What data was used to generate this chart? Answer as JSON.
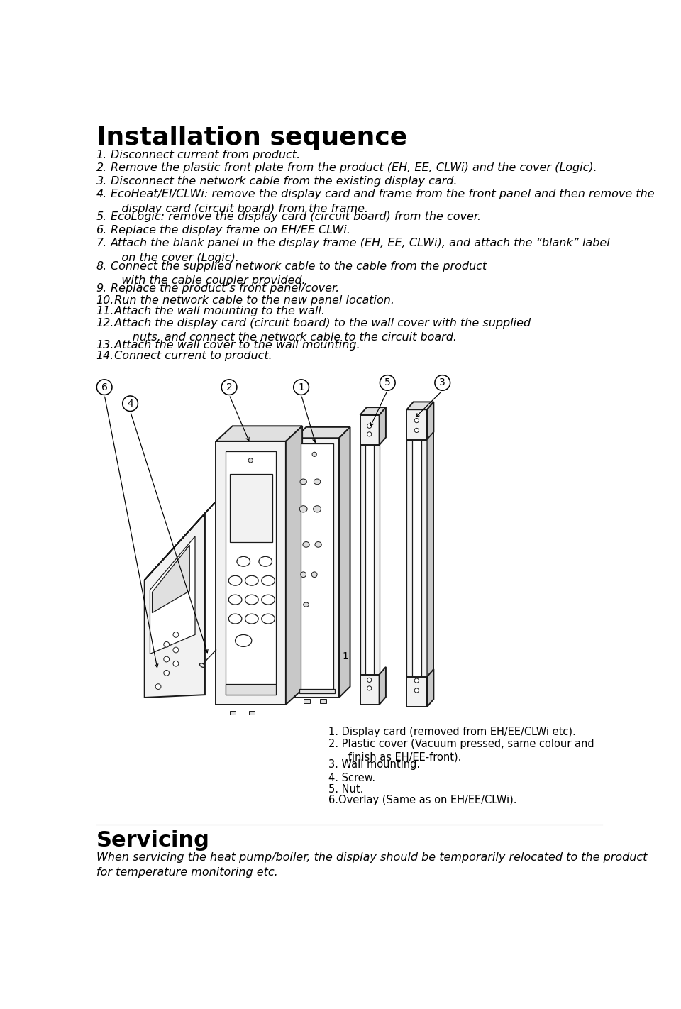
{
  "background_color": "#ffffff",
  "title": "Installation sequence",
  "title_fontsize": 26,
  "steps_italic": true,
  "steps": [
    {
      "num": "1.",
      "text": "Disconnect current from product."
    },
    {
      "num": "2.",
      "text": "Remove the plastic front plate from the product (EH, EE, CLWi) and the cover (Logic)."
    },
    {
      "num": "3.",
      "text": "Disconnect the network cable from the existing display card."
    },
    {
      "num": "4.",
      "text": "EcoHeat/EI/CLWi: remove the display card and frame from the front panel and then remove the\n   display card (circuit board) from the frame."
    },
    {
      "num": "5.",
      "text": "EcoLogic: remove the display card (circuit board) from the cover."
    },
    {
      "num": "6.",
      "text": "Replace the display frame on EH/EE CLWi."
    },
    {
      "num": "7.",
      "text": "Attach the blank panel in the display frame (EH, EE, CLWi), and attach the “blank” label\n   on the cover (Logic)."
    },
    {
      "num": "8.",
      "text": "Connect the supplied network cable to the cable from the product\n   with the cable coupler provided."
    },
    {
      "num": "9.",
      "text": "Replace the product’s front panel/cover."
    },
    {
      "num": "10.",
      "text": " Run the network cable to the new panel location."
    },
    {
      "num": "11.",
      "text": " Attach the wall mounting to the wall."
    },
    {
      "num": "12.",
      "text": " Attach the display card (circuit board) to the wall cover with the supplied\n      nuts, and connect the network cable to the circuit board."
    },
    {
      "num": "13.",
      "text": " Attach the wall cover to the wall mounting."
    },
    {
      "num": "14.",
      "text": " Connect current to product."
    }
  ],
  "legend_items": [
    {
      "num": "1.",
      "text": " Display card (removed from EH/EE/CLWi etc)."
    },
    {
      "num": "2.",
      "text": " Plastic cover (Vacuum pressed, same colour and\n      finish as EH/EE-front)."
    },
    {
      "num": "3.",
      "text": " Wall mounting."
    },
    {
      "num": "4.",
      "text": " Screw."
    },
    {
      "num": "5.",
      "text": " Nut."
    },
    {
      "num": "6.",
      "text": "Overlay (Same as on EH/EE/CLWi)."
    }
  ],
  "servicing_title": "Servicing",
  "servicing_text": "When servicing the heat pump/boiler, the display should be temporarily relocated to the product\nfor temperature monitoring etc.",
  "text_color": "#000000",
  "step_fontsize": 11.5,
  "legend_fontsize": 10.5,
  "servicing_title_fontsize": 22,
  "servicing_text_fontsize": 11.5
}
